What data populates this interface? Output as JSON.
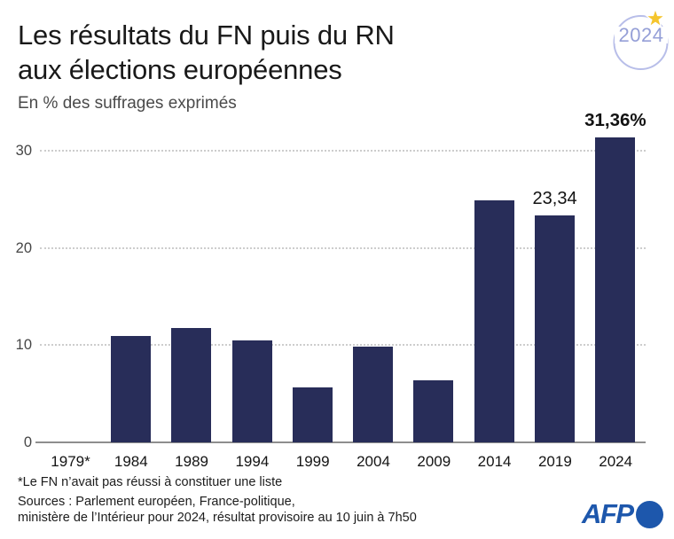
{
  "header": {
    "title_line1": "Les résultats du FN puis du RN",
    "title_line2": "aux élections européennes",
    "subtitle": "En % des suffrages exprimés",
    "badge_year": "2024"
  },
  "chart_data": {
    "type": "bar",
    "title": "Les résultats du FN puis du RN aux élections européennes",
    "ylabel": "En % des suffrages exprimés",
    "categories": [
      "1979*",
      "1984",
      "1989",
      "1994",
      "1999",
      "2004",
      "2009",
      "2014",
      "2019",
      "2024"
    ],
    "values": [
      null,
      10.95,
      11.73,
      10.52,
      5.69,
      9.81,
      6.34,
      24.86,
      23.34,
      31.36
    ],
    "point_labels": [
      "",
      "",
      "",
      "",
      "",
      "",
      "",
      "",
      "23,34",
      "31,36%"
    ],
    "point_labels_bold": [
      false,
      false,
      false,
      false,
      false,
      false,
      false,
      false,
      false,
      true
    ],
    "yticks": [
      0,
      10,
      20,
      30
    ],
    "ylim": [
      0,
      31.8
    ],
    "grid": "horizontal-dotted",
    "legend": "none",
    "note_1979": "no bar — FN did not run a list"
  },
  "footer": {
    "footnote": "*Le FN n’avait pas réussi à constituer une liste",
    "sources_line1": "Sources : Parlement européen, France-politique,",
    "sources_line2": "ministère de l’Intérieur pour 2024, résultat provisoire au 10 juin à 7h50",
    "logo_text": "AFP"
  },
  "colors": {
    "bar": "#282d59",
    "afp_blue": "#1d57ac",
    "badge_ring": "#b8bee9",
    "badge_text": "#959fd7",
    "star": "#f5c52d",
    "grid": "#cdcdcd",
    "axis": "#8e8e8e"
  }
}
